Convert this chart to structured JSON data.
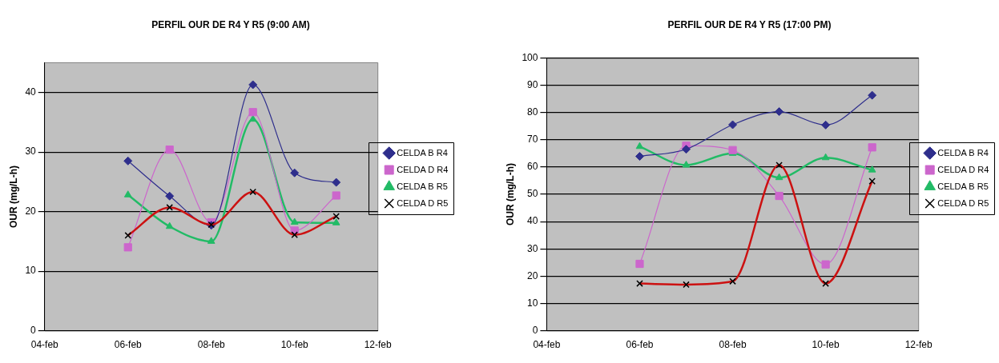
{
  "chart_data": [
    {
      "type": "line",
      "title": "PERFIL OUR DE R4 Y R5 (9:00 AM)",
      "ylabel": "OUR (mg/L-h)",
      "x": [
        "--02-06",
        "--02-07",
        "--02-08",
        "--02-09",
        "--02-10",
        "--02-11"
      ],
      "series": [
        {
          "name": "CELDA B R4",
          "color": "#2e2e8c",
          "marker": "diamond",
          "values": [
            28.5,
            22.6,
            17.7,
            41.3,
            26.5,
            24.9
          ]
        },
        {
          "name": "CELDA D R4",
          "color": "#cc66cc",
          "marker": "square",
          "values": [
            14,
            30.4,
            18.2,
            36.7,
            16.8,
            22.7
          ]
        },
        {
          "name": "CELDA B R5",
          "color": "#22bb66",
          "marker": "triangle",
          "values": [
            22.8,
            17.5,
            15,
            35.5,
            18.2,
            18.1
          ]
        },
        {
          "name": "CELDA D R5",
          "color": "#cc1111",
          "marker": "cross",
          "values": [
            16,
            20.7,
            17.8,
            23.3,
            16.1,
            19.2
          ]
        }
      ],
      "xlim": [
        "--02-04",
        "--02-12"
      ],
      "xticks": [
        {
          "value": "--02-04",
          "label": "04-feb"
        },
        {
          "value": "--02-06",
          "label": "06-feb"
        },
        {
          "value": "--02-08",
          "label": "08-feb"
        },
        {
          "value": "--02-10",
          "label": "10-feb"
        },
        {
          "value": "--02-12",
          "label": "12-feb"
        }
      ],
      "ylim": [
        0,
        45
      ],
      "yticks": [
        0,
        10,
        20,
        30,
        40
      ],
      "grid": "y",
      "legend": "right"
    },
    {
      "type": "line",
      "title": "PERFIL OUR DE R4 Y R5 (17:00 PM)",
      "ylabel": "OUR (mg/L-h)",
      "x": [
        "--02-06",
        "--02-07",
        "--02-08",
        "--02-09",
        "--02-10",
        "--02-11"
      ],
      "series": [
        {
          "name": "CELDA B R4",
          "color": "#2e2e8c",
          "marker": "diamond",
          "values": [
            63.9,
            66.5,
            75.5,
            80.3,
            75.4,
            86.3
          ]
        },
        {
          "name": "CELDA D R4",
          "color": "#cc66cc",
          "marker": "square",
          "values": [
            24.5,
            67.8,
            66.2,
            49.4,
            24.3,
            67.2
          ]
        },
        {
          "name": "CELDA B R5",
          "color": "#22bb66",
          "marker": "triangle",
          "values": [
            67.5,
            60.7,
            65,
            56.1,
            63.4,
            58.9
          ]
        },
        {
          "name": "CELDA D R5",
          "color": "#cc1111",
          "marker": "cross",
          "values": [
            17.3,
            16.9,
            18.1,
            60.7,
            17.3,
            54.8
          ]
        }
      ],
      "xlim": [
        "--02-04",
        "--02-12"
      ],
      "xticks": [
        {
          "value": "--02-04",
          "label": "04-feb"
        },
        {
          "value": "--02-06",
          "label": "06-feb"
        },
        {
          "value": "--02-08",
          "label": "08-feb"
        },
        {
          "value": "--02-10",
          "label": "10-feb"
        },
        {
          "value": "--02-12",
          "label": "12-feb"
        }
      ],
      "ylim": [
        0,
        100
      ],
      "yticks": [
        0,
        10,
        20,
        30,
        40,
        50,
        60,
        70,
        80,
        90,
        100
      ],
      "grid": "y",
      "legend": "right"
    }
  ]
}
